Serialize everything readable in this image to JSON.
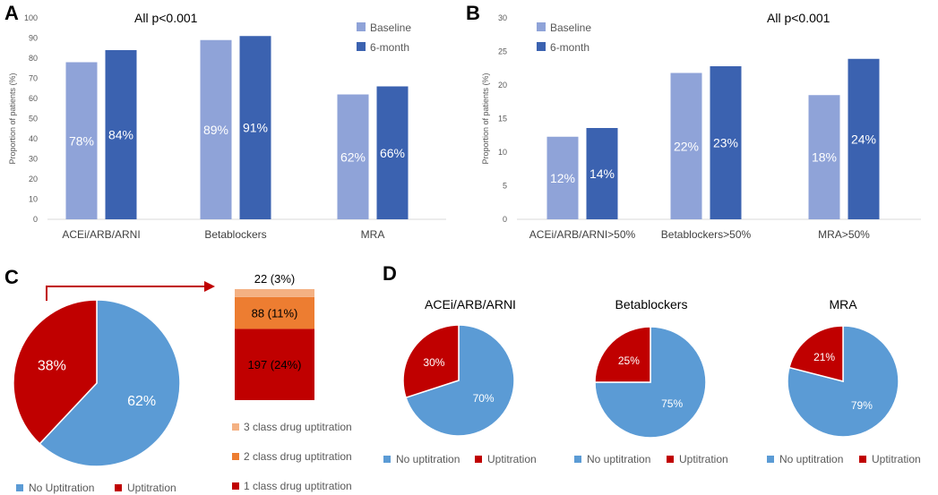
{
  "colors": {
    "baseline": "#8FA3D8",
    "six_month": "#3B62B0",
    "no_uptitration": "#5B9BD5",
    "uptitration": "#C00000",
    "class3": "#F4B183",
    "class2": "#ED7D31",
    "class1": "#C00000",
    "arrow": "#C00000"
  },
  "chart_data": [
    {
      "panel": "A",
      "type": "bar",
      "annotation": "All p<0.001",
      "ylabel": "Proportion of patients (%)",
      "ylim": [
        0,
        100
      ],
      "yticks": [
        0,
        10,
        20,
        30,
        40,
        50,
        60,
        70,
        80,
        90,
        100
      ],
      "categories": [
        "ACEi/ARB/ARNI",
        "Betablockers",
        "MRA"
      ],
      "series": [
        {
          "name": "Baseline",
          "values": [
            78,
            89,
            62
          ],
          "labels": [
            "78%",
            "89%",
            "62%"
          ]
        },
        {
          "name": "6-month",
          "values": [
            84,
            91,
            66
          ],
          "labels": [
            "84%",
            "91%",
            "66%"
          ]
        }
      ],
      "legend": "top-right"
    },
    {
      "panel": "B",
      "type": "bar",
      "annotation": "All p<0.001",
      "ylabel": "Proportion of patients (%)",
      "ylim": [
        0,
        30
      ],
      "yticks": [
        0,
        5,
        10,
        15,
        20,
        25,
        30
      ],
      "categories": [
        "ACEi/ARB/ARNI>50%",
        "Betablockers>50%",
        "MRA>50%"
      ],
      "series": [
        {
          "name": "Baseline",
          "values": [
            12.3,
            21.8,
            18.5
          ],
          "labels": [
            "12%",
            "22%",
            "18%"
          ]
        },
        {
          "name": "6-month",
          "values": [
            13.6,
            22.8,
            23.9
          ],
          "labels": [
            "14%",
            "23%",
            "24%"
          ]
        }
      ],
      "legend": "top-left"
    },
    {
      "panel": "C",
      "type": "pie",
      "slices": [
        {
          "name": "No Uptitration",
          "value": 62,
          "label": "62%"
        },
        {
          "name": "Uptitration",
          "value": 38,
          "label": "38%"
        }
      ],
      "stack": {
        "segments": [
          {
            "name": "1 class drug uptitration",
            "value": 197,
            "label": "197 (24%)"
          },
          {
            "name": "2 class drug uptitration",
            "value": 88,
            "label": "88 (11%)"
          },
          {
            "name": "3 class drug uptitration",
            "value": 22,
            "label": "22 (3%)"
          }
        ]
      },
      "legend": "bottom"
    },
    {
      "panel": "D",
      "type": "pie",
      "pies": [
        {
          "title": "ACEi/ARB/ARNI",
          "slices": [
            {
              "name": "No uptitration",
              "value": 70,
              "label": "70%"
            },
            {
              "name": "Uptitration",
              "value": 30,
              "label": "30%"
            }
          ]
        },
        {
          "title": "Betablockers",
          "slices": [
            {
              "name": "No uptitration",
              "value": 75,
              "label": "75%"
            },
            {
              "name": "Uptitration",
              "value": 25,
              "label": "25%"
            }
          ]
        },
        {
          "title": "MRA",
          "slices": [
            {
              "name": "No uptitration",
              "value": 79,
              "label": "79%"
            },
            {
              "name": "Uptitration",
              "value": 21,
              "label": "21%"
            }
          ]
        }
      ],
      "legend": "bottom"
    }
  ]
}
